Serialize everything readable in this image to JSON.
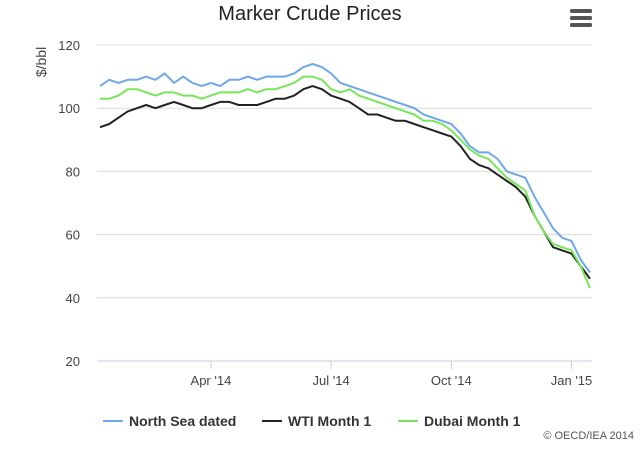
{
  "chart_data": {
    "type": "line",
    "title": "Marker Crude Prices",
    "y_label": "$/bbl",
    "credit": "© OECD/IEA 2014",
    "categories": [
      null,
      null,
      null,
      null,
      null,
      null,
      null,
      null,
      null,
      null,
      null,
      null,
      "Apr '14",
      null,
      null,
      null,
      null,
      null,
      null,
      null,
      null,
      null,
      null,
      null,
      null,
      "Jul '14",
      null,
      null,
      null,
      null,
      null,
      null,
      null,
      null,
      null,
      null,
      null,
      null,
      "Oct '14",
      null,
      null,
      null,
      null,
      null,
      null,
      null,
      null,
      null,
      null,
      null,
      null,
      "Jan '15",
      null,
      null
    ],
    "series": [
      {
        "name": "North Sea dated",
        "color": "#6fa8e8",
        "values": [
          107,
          109,
          108,
          109,
          109,
          110,
          109,
          111,
          108,
          110,
          108,
          107,
          108,
          107,
          109,
          109,
          110,
          109,
          110,
          110,
          110,
          111,
          113,
          114,
          113,
          111,
          108,
          107,
          106,
          105,
          104,
          103,
          102,
          101,
          100,
          98,
          97,
          96,
          95,
          92,
          88,
          86,
          86,
          84,
          80,
          79,
          78,
          72,
          67,
          62,
          59,
          58,
          52,
          48
        ]
      },
      {
        "name": "WTI Month 1",
        "color": "#222222",
        "values": [
          94,
          95,
          97,
          99,
          100,
          101,
          100,
          101,
          102,
          101,
          100,
          100,
          101,
          102,
          102,
          101,
          101,
          101,
          102,
          103,
          103,
          104,
          106,
          107,
          106,
          104,
          103,
          102,
          100,
          98,
          98,
          97,
          96,
          96,
          95,
          94,
          93,
          92,
          91,
          88,
          84,
          82,
          81,
          79,
          77,
          75,
          72,
          66,
          61,
          56,
          55,
          54,
          50,
          46
        ]
      },
      {
        "name": "Dubai Month 1",
        "color": "#78e65a",
        "values": [
          103,
          103,
          104,
          106,
          106,
          105,
          104,
          105,
          105,
          104,
          104,
          103,
          104,
          105,
          105,
          105,
          106,
          105,
          106,
          106,
          107,
          108,
          110,
          110,
          109,
          106,
          105,
          106,
          104,
          103,
          102,
          101,
          100,
          99,
          98,
          96,
          96,
          95,
          93,
          90,
          87,
          85,
          84,
          81,
          78,
          76,
          74,
          66,
          61,
          57,
          56,
          55,
          50,
          43
        ]
      }
    ],
    "ylim": [
      20,
      120
    ],
    "yticks": [
      20,
      40,
      60,
      80,
      100,
      120
    ],
    "grid": true,
    "legend": "bottom"
  }
}
